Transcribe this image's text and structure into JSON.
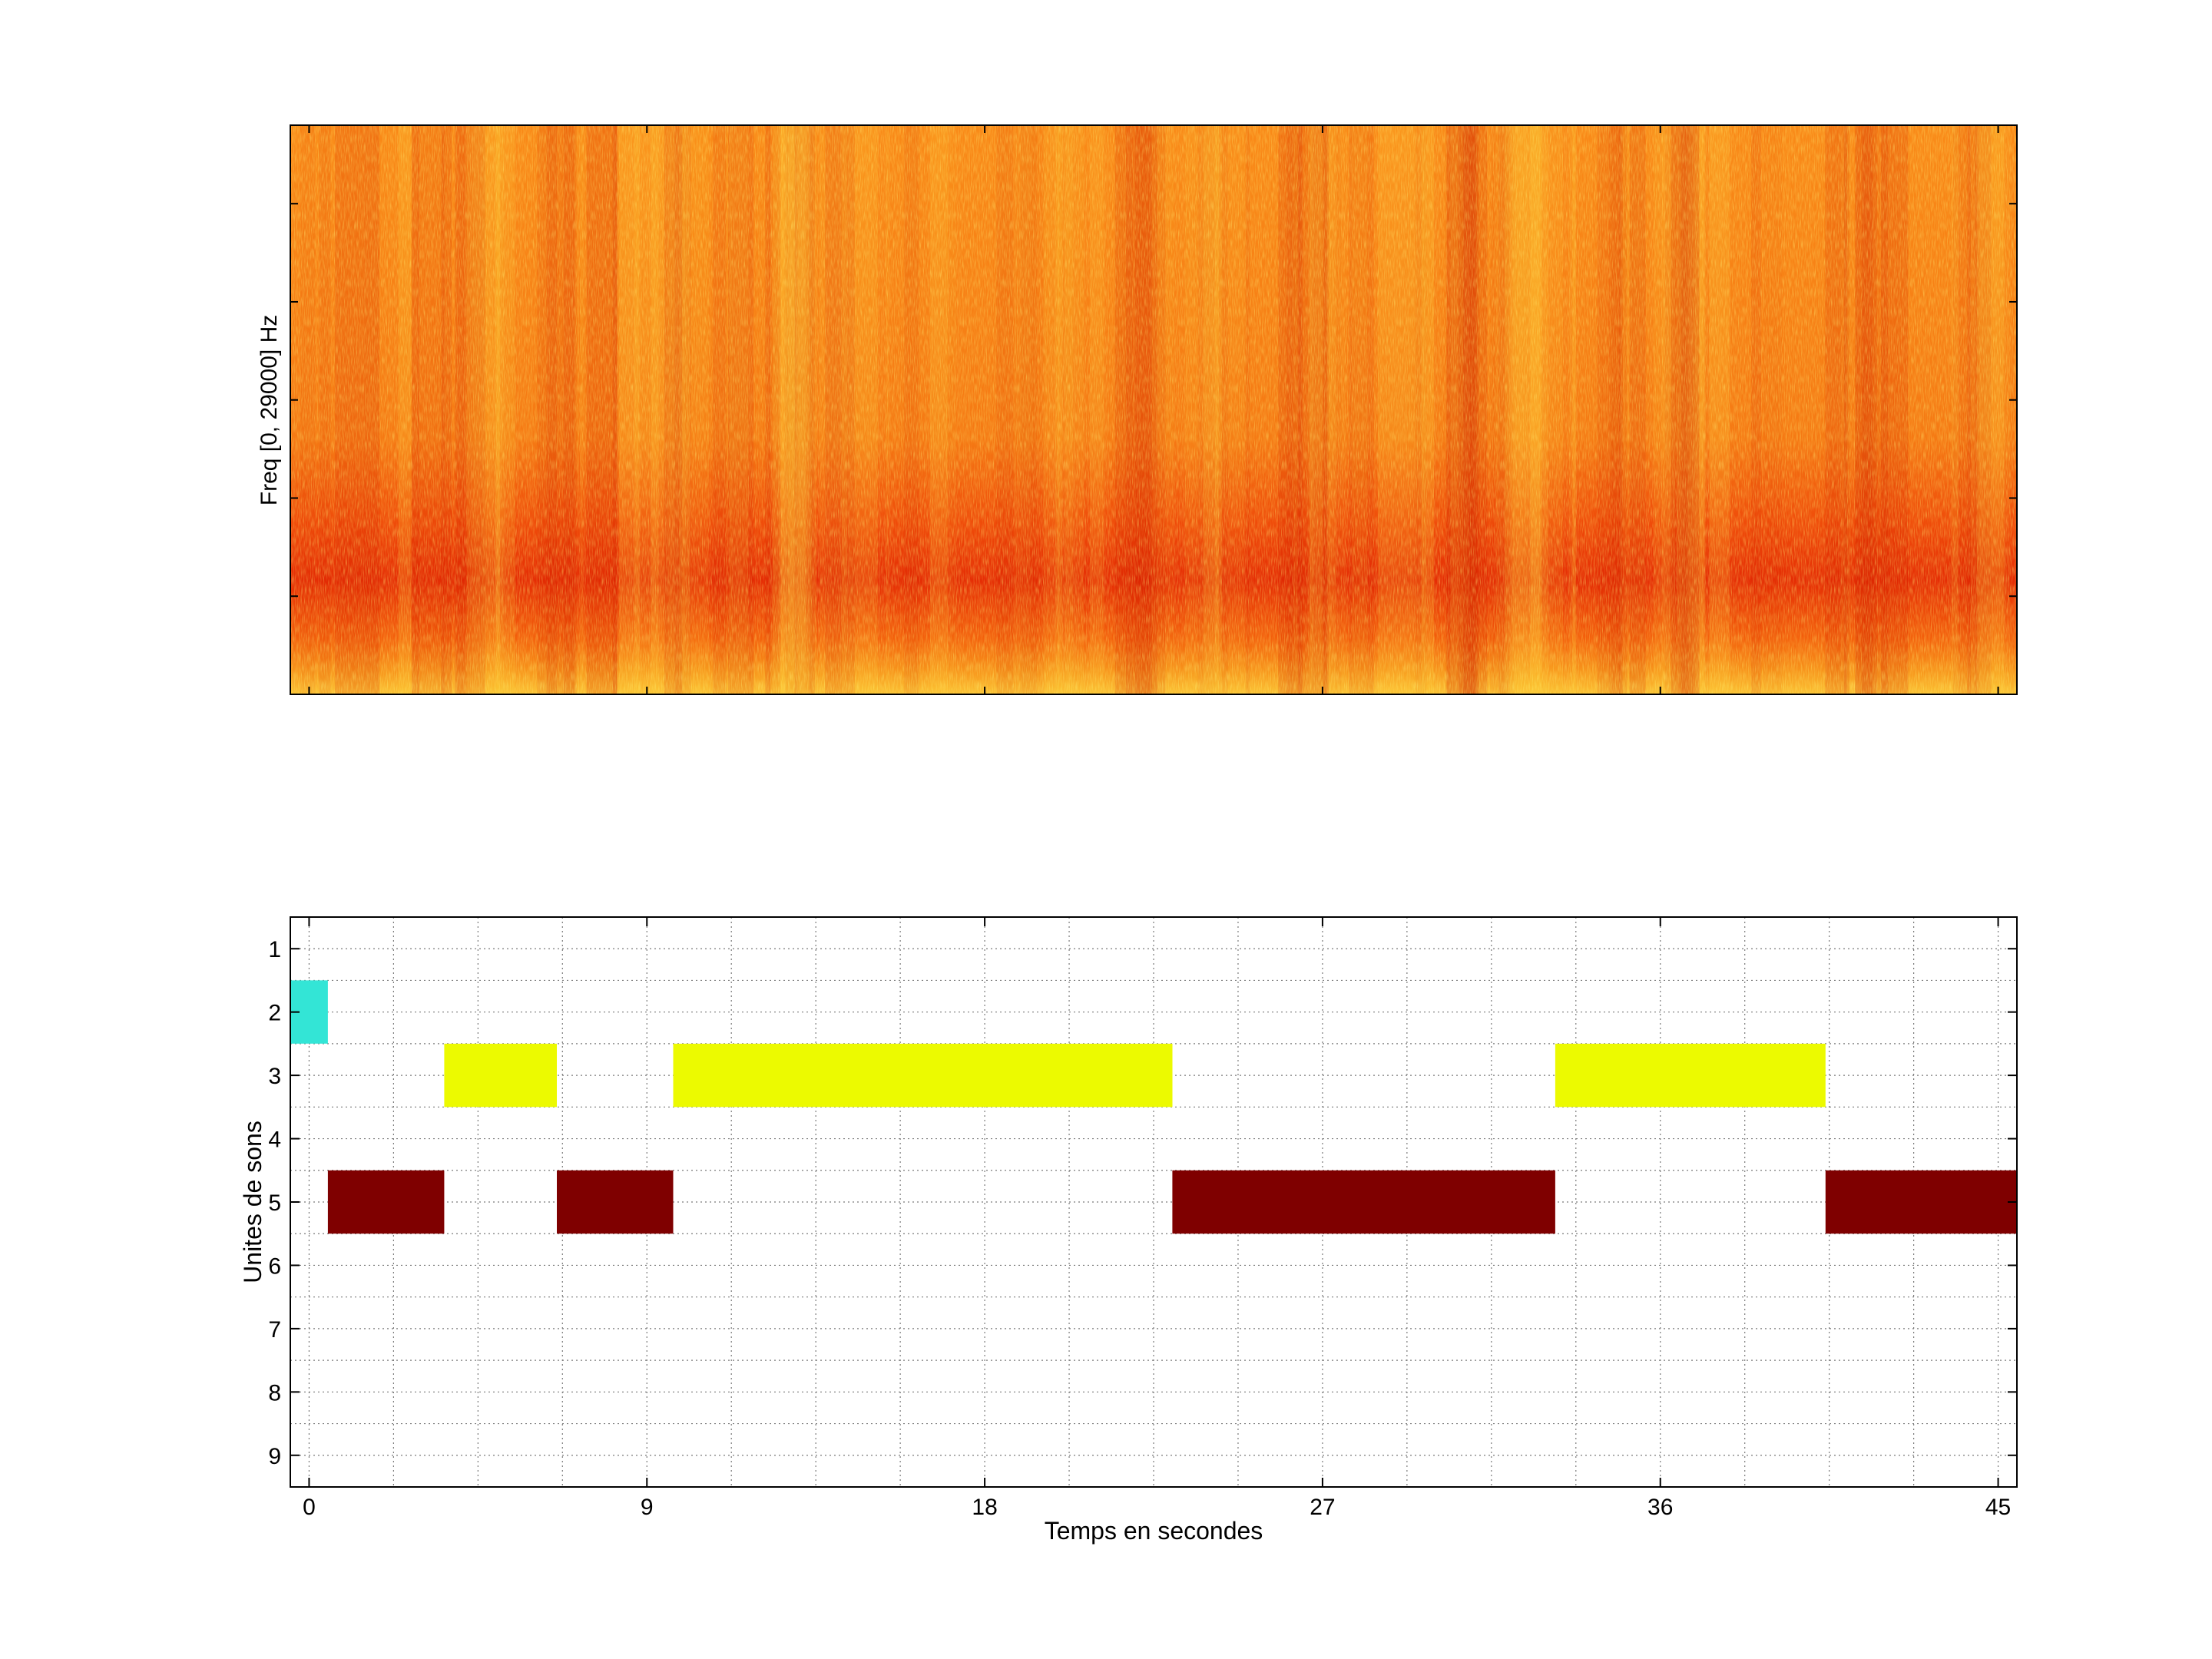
{
  "chart_data": [
    {
      "type": "heatmap",
      "title": "",
      "xlabel": "",
      "ylabel": "Freq [0, 29000] Hz",
      "xlim": [
        -0.5,
        45.5
      ],
      "ylim": [
        0,
        29000
      ],
      "colormap": "hot",
      "x_tick_labels_shown": false,
      "y_tick_labels_shown": false,
      "grid": false
    },
    {
      "type": "bar",
      "orientation": "horizontal-segments",
      "title": "",
      "xlabel": "Temps en secondes",
      "ylabel": "Unites de sons",
      "xlim": [
        -0.5,
        45.5
      ],
      "ylim": [
        0.5,
        9.5
      ],
      "y_reversed": true,
      "x_ticks": [
        0,
        9,
        18,
        27,
        36,
        45
      ],
      "y_ticks": [
        1,
        2,
        3,
        4,
        5,
        6,
        7,
        8,
        9
      ],
      "grid": true,
      "segments": [
        {
          "unit": 2,
          "start": -0.5,
          "end": 0.5,
          "color": "#33e5d6"
        },
        {
          "unit": 5,
          "start": 0.5,
          "end": 3.6,
          "color": "#7f0000"
        },
        {
          "unit": 3,
          "start": 3.6,
          "end": 6.6,
          "color": "#ecfa00"
        },
        {
          "unit": 5,
          "start": 6.6,
          "end": 9.7,
          "color": "#7f0000"
        },
        {
          "unit": 3,
          "start": 9.7,
          "end": 23.0,
          "color": "#ecfa00"
        },
        {
          "unit": 5,
          "start": 23.0,
          "end": 33.2,
          "color": "#7f0000"
        },
        {
          "unit": 3,
          "start": 33.2,
          "end": 40.4,
          "color": "#ecfa00"
        },
        {
          "unit": 5,
          "start": 40.4,
          "end": 45.5,
          "color": "#7f0000"
        }
      ]
    }
  ]
}
